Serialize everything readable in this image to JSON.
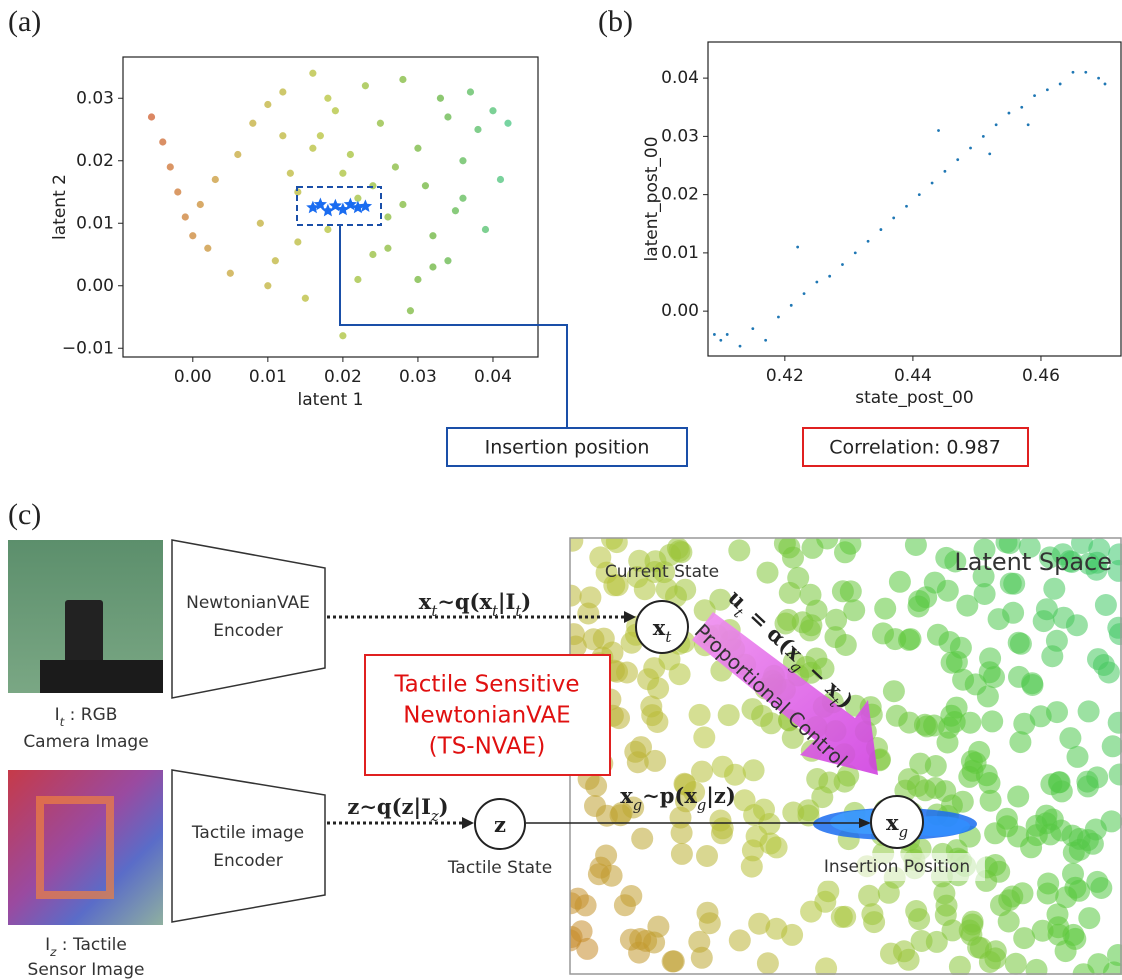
{
  "chart_data": [
    {
      "type": "scatter",
      "panel_label": "(a)",
      "xlabel": "latent 1",
      "ylabel": "latent 2",
      "xlim": [
        -0.0093,
        0.046
      ],
      "ylim": [
        -0.0114,
        0.0366
      ],
      "xticks": [
        {
          "value": 0,
          "label": "0.00"
        },
        0.01,
        0.02,
        0.03,
        0.04
      ],
      "yticks": [
        {
          "value": -0.01,
          "label": "−0.01"
        },
        {
          "value": 0,
          "label": "0.00"
        },
        0.01,
        0.02,
        0.03
      ],
      "annotation": "Insertion position",
      "series": [
        {
          "colormap": [
            "#d2452b",
            "#c8a53a",
            "#b4c43a",
            "#6ab43c",
            "#3ccc9e"
          ],
          "x": [
            -0.0055,
            -0.004,
            -0.003,
            -0.002,
            -0.001,
            0.0,
            0.001,
            0.002,
            0.003,
            0.005,
            0.006,
            0.008,
            0.009,
            0.01,
            0.011,
            0.012,
            0.013,
            0.014,
            0.015,
            0.016,
            0.017,
            0.018,
            0.019,
            0.02,
            0.021,
            0.022,
            0.023,
            0.024,
            0.025,
            0.026,
            0.027,
            0.028,
            0.029,
            0.03,
            0.031,
            0.032,
            0.033,
            0.034,
            0.035,
            0.036,
            0.037,
            0.038,
            0.039,
            0.04,
            0.041,
            0.042,
            0.01,
            0.014,
            0.018,
            0.022,
            0.026,
            0.03,
            0.034,
            0.012,
            0.016,
            0.02,
            0.024,
            0.028,
            0.032,
            0.036
          ],
          "y": [
            0.027,
            0.023,
            0.019,
            0.015,
            0.011,
            0.008,
            0.013,
            0.006,
            0.017,
            0.002,
            0.021,
            0.026,
            0.01,
            0.029,
            0.004,
            0.031,
            0.018,
            0.015,
            -0.002,
            0.034,
            0.024,
            0.009,
            0.028,
            -0.008,
            0.021,
            0.014,
            0.032,
            0.005,
            0.026,
            0.011,
            0.019,
            0.033,
            -0.004,
            0.022,
            0.016,
            0.008,
            0.03,
            0.027,
            0.012,
            0.02,
            0.031,
            0.025,
            0.009,
            0.028,
            0.017,
            0.026,
            0.0,
            0.007,
            0.03,
            0.001,
            0.006,
            0.001,
            0.004,
            0.024,
            0.022,
            0.018,
            0.016,
            0.013,
            0.003,
            0.014
          ]
        },
        {
          "color": "#1a6cf0",
          "marker": "star",
          "x": [
            0.016,
            0.017,
            0.018,
            0.019,
            0.02,
            0.021,
            0.022,
            0.023
          ],
          "y": [
            0.0125,
            0.013,
            0.012,
            0.0128,
            0.0122,
            0.013,
            0.0125,
            0.0127
          ]
        }
      ]
    },
    {
      "type": "scatter",
      "panel_label": "(b)",
      "xlabel": "state_post_00",
      "ylabel": "latent_post_00",
      "xlim": [
        0.408,
        0.4725
      ],
      "ylim": [
        -0.0077,
        0.0462
      ],
      "xticks": [
        0.42,
        0.44,
        0.46
      ],
      "yticks": [
        {
          "value": 0,
          "label": "0.00"
        },
        0.01,
        0.02,
        0.03,
        0.04
      ],
      "annotation": "Correlation: 0.987",
      "series": [
        {
          "color": "#1f77b4",
          "x": [
            0.409,
            0.41,
            0.411,
            0.413,
            0.415,
            0.417,
            0.419,
            0.421,
            0.423,
            0.425,
            0.427,
            0.429,
            0.431,
            0.433,
            0.435,
            0.437,
            0.439,
            0.441,
            0.443,
            0.445,
            0.447,
            0.449,
            0.451,
            0.453,
            0.455,
            0.457,
            0.459,
            0.461,
            0.463,
            0.465,
            0.467,
            0.469,
            0.47,
            0.422,
            0.444,
            0.452,
            0.458
          ],
          "y": [
            -0.004,
            -0.005,
            -0.004,
            -0.006,
            -0.003,
            -0.005,
            -0.001,
            0.001,
            0.003,
            0.005,
            0.006,
            0.008,
            0.01,
            0.012,
            0.014,
            0.016,
            0.018,
            0.02,
            0.022,
            0.024,
            0.026,
            0.028,
            0.03,
            0.032,
            0.034,
            0.035,
            0.037,
            0.038,
            0.039,
            0.041,
            0.041,
            0.04,
            0.039,
            0.011,
            0.031,
            0.027,
            0.032
          ]
        }
      ]
    }
  ],
  "diagram": {
    "panel_label": "(c)",
    "rgb_caption": [
      [
        "I",
        "t",
        " : RGB"
      ],
      "Camera Image"
    ],
    "tactile_caption": [
      [
        "I",
        "z",
        " : Tactile"
      ],
      "Sensor Image"
    ],
    "encoder_rgb": [
      "NewtonianVAE",
      "Encoder"
    ],
    "encoder_tactile": [
      "Tactile image",
      "Encoder"
    ],
    "formula_xt": [
      "x",
      "t",
      "∼q(x",
      "t",
      "|I",
      "t",
      ")"
    ],
    "formula_z": [
      "z∼q(z|I",
      "z",
      ")"
    ],
    "formula_xg": [
      "x",
      "g",
      "∼p(x",
      "g",
      "|z)"
    ],
    "formula_u": [
      "u",
      "t",
      " = α(x",
      "g",
      " − x",
      "t",
      ")"
    ],
    "control": "Proportional Control",
    "model": [
      "Tactile Sensitive",
      "NewtonianVAE",
      "(TS-NVAE)"
    ],
    "latent_title": "Latent Space",
    "nodes": [
      {
        "label": [
          "x",
          "t"
        ],
        "caption": "Current State"
      },
      {
        "label": [
          "z"
        ],
        "caption": "Tactile State"
      },
      {
        "label": [
          "x",
          "g"
        ],
        "caption": "Insertion Position"
      }
    ]
  }
}
